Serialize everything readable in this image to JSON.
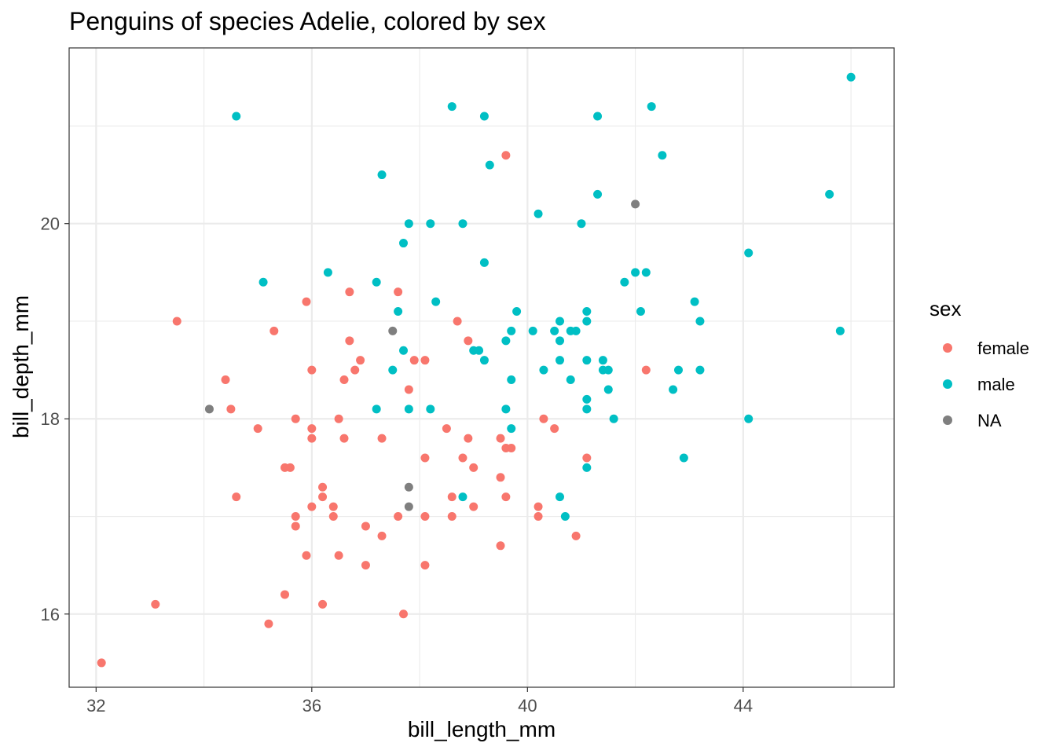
{
  "chart_data": {
    "type": "scatter",
    "title": "Penguins of species Adelie, colored by sex",
    "xlabel": "bill_length_mm",
    "ylabel": "bill_depth_mm",
    "xlim": [
      31.5,
      46.8
    ],
    "ylim": [
      15.25,
      21.8
    ],
    "xticks": [
      "32",
      "36",
      "40",
      "44"
    ],
    "yticks": [
      "16",
      "18",
      "20"
    ],
    "grid": true,
    "legend": {
      "title": "sex",
      "position": "right",
      "entries": [
        "female",
        "male",
        "NA"
      ]
    },
    "colors": {
      "female": "#F8766D",
      "male": "#00BFC4",
      "NA": "#7F7F7F"
    },
    "series": [
      {
        "name": "female",
        "points": [
          [
            32.1,
            15.5
          ],
          [
            33.1,
            16.1
          ],
          [
            33.5,
            19.0
          ],
          [
            34.4,
            18.4
          ],
          [
            34.5,
            18.1
          ],
          [
            34.6,
            17.2
          ],
          [
            35.0,
            17.9
          ],
          [
            35.2,
            15.9
          ],
          [
            35.3,
            18.9
          ],
          [
            35.5,
            16.2
          ],
          [
            35.5,
            17.5
          ],
          [
            35.6,
            17.5
          ],
          [
            35.7,
            16.9
          ],
          [
            35.7,
            17.0
          ],
          [
            35.7,
            18.0
          ],
          [
            35.9,
            16.6
          ],
          [
            35.9,
            19.2
          ],
          [
            36.0,
            17.1
          ],
          [
            36.0,
            17.8
          ],
          [
            36.0,
            17.9
          ],
          [
            36.0,
            18.5
          ],
          [
            36.2,
            16.1
          ],
          [
            36.2,
            17.2
          ],
          [
            36.2,
            17.3
          ],
          [
            36.4,
            17.0
          ],
          [
            36.4,
            17.1
          ],
          [
            36.5,
            16.6
          ],
          [
            36.5,
            18.0
          ],
          [
            36.6,
            17.8
          ],
          [
            36.6,
            18.4
          ],
          [
            36.7,
            18.8
          ],
          [
            36.7,
            19.3
          ],
          [
            36.8,
            18.5
          ],
          [
            36.9,
            18.6
          ],
          [
            37.0,
            16.5
          ],
          [
            37.0,
            16.9
          ],
          [
            37.3,
            16.8
          ],
          [
            37.3,
            17.8
          ],
          [
            37.6,
            17.0
          ],
          [
            37.6,
            19.3
          ],
          [
            37.7,
            16.0
          ],
          [
            37.8,
            18.3
          ],
          [
            37.9,
            18.6
          ],
          [
            38.1,
            16.5
          ],
          [
            38.1,
            17.0
          ],
          [
            38.1,
            17.6
          ],
          [
            38.1,
            18.6
          ],
          [
            38.5,
            17.9
          ],
          [
            38.6,
            17.0
          ],
          [
            38.6,
            17.2
          ],
          [
            38.7,
            19.0
          ],
          [
            38.8,
            17.6
          ],
          [
            38.9,
            17.8
          ],
          [
            38.9,
            18.8
          ],
          [
            39.0,
            17.1
          ],
          [
            39.0,
            17.5
          ],
          [
            39.5,
            16.7
          ],
          [
            39.5,
            17.4
          ],
          [
            39.5,
            17.8
          ],
          [
            39.6,
            17.2
          ],
          [
            39.6,
            17.7
          ],
          [
            39.6,
            20.7
          ],
          [
            39.7,
            17.7
          ],
          [
            40.2,
            17.0
          ],
          [
            40.2,
            17.1
          ],
          [
            40.3,
            18.0
          ],
          [
            40.5,
            17.9
          ],
          [
            40.9,
            16.8
          ],
          [
            41.1,
            17.6
          ],
          [
            42.2,
            18.5
          ]
        ]
      },
      {
        "name": "male",
        "points": [
          [
            34.6,
            21.1
          ],
          [
            35.1,
            19.4
          ],
          [
            36.3,
            19.5
          ],
          [
            37.2,
            18.1
          ],
          [
            37.2,
            19.4
          ],
          [
            37.3,
            20.5
          ],
          [
            37.5,
            18.5
          ],
          [
            37.6,
            19.1
          ],
          [
            37.7,
            18.7
          ],
          [
            37.7,
            19.8
          ],
          [
            37.8,
            18.1
          ],
          [
            37.8,
            20.0
          ],
          [
            38.2,
            18.1
          ],
          [
            38.2,
            20.0
          ],
          [
            38.3,
            19.2
          ],
          [
            38.6,
            21.2
          ],
          [
            38.8,
            17.2
          ],
          [
            38.8,
            20.0
          ],
          [
            39.0,
            18.7
          ],
          [
            39.1,
            18.7
          ],
          [
            39.2,
            18.6
          ],
          [
            39.2,
            19.6
          ],
          [
            39.2,
            21.1
          ],
          [
            39.3,
            20.6
          ],
          [
            39.6,
            18.1
          ],
          [
            39.6,
            18.8
          ],
          [
            39.7,
            17.9
          ],
          [
            39.7,
            18.4
          ],
          [
            39.7,
            18.9
          ],
          [
            39.8,
            19.1
          ],
          [
            40.1,
            18.9
          ],
          [
            40.2,
            20.1
          ],
          [
            40.3,
            18.5
          ],
          [
            40.5,
            18.9
          ],
          [
            40.6,
            17.2
          ],
          [
            40.6,
            18.6
          ],
          [
            40.6,
            18.8
          ],
          [
            40.6,
            19.0
          ],
          [
            40.7,
            17.0
          ],
          [
            40.8,
            18.4
          ],
          [
            40.8,
            18.9
          ],
          [
            40.9,
            18.9
          ],
          [
            41.0,
            20.0
          ],
          [
            41.1,
            17.5
          ],
          [
            41.1,
            18.1
          ],
          [
            41.1,
            18.2
          ],
          [
            41.1,
            18.6
          ],
          [
            41.1,
            19.0
          ],
          [
            41.1,
            19.1
          ],
          [
            41.3,
            20.3
          ],
          [
            41.3,
            21.1
          ],
          [
            41.4,
            18.5
          ],
          [
            41.4,
            18.6
          ],
          [
            41.5,
            18.3
          ],
          [
            41.5,
            18.5
          ],
          [
            41.6,
            18.0
          ],
          [
            41.8,
            19.4
          ],
          [
            42.0,
            19.5
          ],
          [
            42.1,
            19.1
          ],
          [
            42.2,
            19.5
          ],
          [
            42.3,
            21.2
          ],
          [
            42.5,
            20.7
          ],
          [
            42.7,
            18.3
          ],
          [
            42.8,
            18.5
          ],
          [
            42.9,
            17.6
          ],
          [
            43.1,
            19.2
          ],
          [
            43.2,
            18.5
          ],
          [
            43.2,
            19.0
          ],
          [
            44.1,
            18.0
          ],
          [
            44.1,
            19.7
          ],
          [
            45.6,
            20.3
          ],
          [
            45.8,
            18.9
          ],
          [
            46.0,
            21.5
          ]
        ]
      },
      {
        "name": "NA",
        "points": [
          [
            34.1,
            18.1
          ],
          [
            37.5,
            18.9
          ],
          [
            37.8,
            17.1
          ],
          [
            37.8,
            17.3
          ],
          [
            42.0,
            20.2
          ]
        ]
      }
    ]
  }
}
